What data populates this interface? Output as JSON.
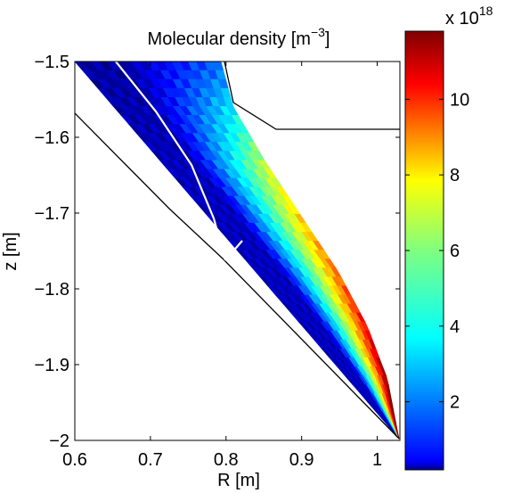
{
  "chart_data": {
    "type": "heatmap",
    "title": "Molecular density [m",
    "title_sup": "−3",
    "title_end": "]",
    "xlabel": "R [m]",
    "ylabel": "z [m]",
    "xlim": [
      0.6,
      1.03
    ],
    "ylim": [
      -2.0,
      -1.5
    ],
    "xticks": [
      0.6,
      0.7,
      0.8,
      0.9,
      1.0
    ],
    "xtick_labels": [
      "0.6",
      "0.7",
      "0.8",
      "0.9",
      "1"
    ],
    "yticks": [
      -1.5,
      -1.6,
      -1.7,
      -1.8,
      -1.9,
      -2.0
    ],
    "ytick_labels": [
      "−1.5",
      "−1.6",
      "−1.7",
      "−1.8",
      "−1.9",
      "−2"
    ],
    "colorbar": {
      "colormap": "jet",
      "range": [
        0.2,
        11.8
      ],
      "ticks": [
        2,
        4,
        6,
        8,
        10
      ],
      "tick_labels": [
        "2",
        "4",
        "6",
        "8",
        "10"
      ],
      "multiplier_base": "x 10",
      "multiplier_exponent": "18"
    },
    "grid": false,
    "wall_color": "#000000",
    "separatrix_color": "#ffffff"
  }
}
